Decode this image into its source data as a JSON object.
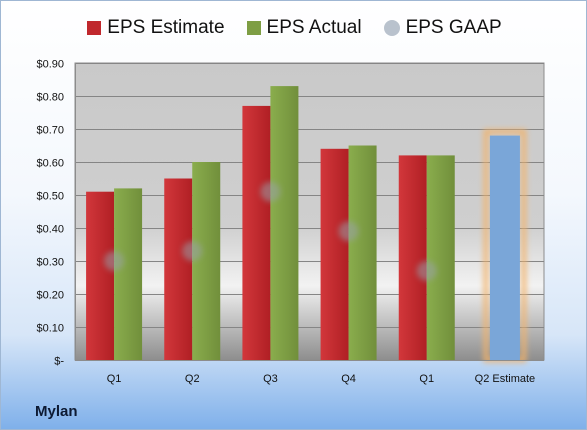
{
  "chart_data": {
    "type": "bar",
    "categories": [
      "Q1",
      "Q2",
      "Q3",
      "Q4",
      "Q1",
      "Q2 Estimate"
    ],
    "series": [
      {
        "name": "EPS Estimate",
        "values": [
          0.51,
          0.55,
          0.77,
          0.64,
          0.62,
          null
        ],
        "color": "#c0282d"
      },
      {
        "name": "EPS Actual",
        "values": [
          0.52,
          0.6,
          0.83,
          0.65,
          0.62,
          null
        ],
        "color": "#7e9e44"
      },
      {
        "name": "EPS GAAP",
        "values": [
          0.3,
          0.33,
          0.51,
          0.39,
          0.27,
          null
        ],
        "color": "#b9c2cd"
      },
      {
        "name": "",
        "values": [
          null,
          null,
          null,
          null,
          null,
          0.68
        ],
        "color": "#7aa6d8"
      }
    ],
    "y_ticks": [
      "$-",
      "$0.10",
      "$0.20",
      "$0.30",
      "$0.40",
      "$0.50",
      "$0.60",
      "$0.70",
      "$0.80",
      "$0.90"
    ],
    "ylim": [
      0,
      0.9
    ],
    "grid": true,
    "legend_position": "top",
    "title": "",
    "xlabel": "",
    "ylabel": ""
  },
  "footer": {
    "company": "Mylan"
  }
}
